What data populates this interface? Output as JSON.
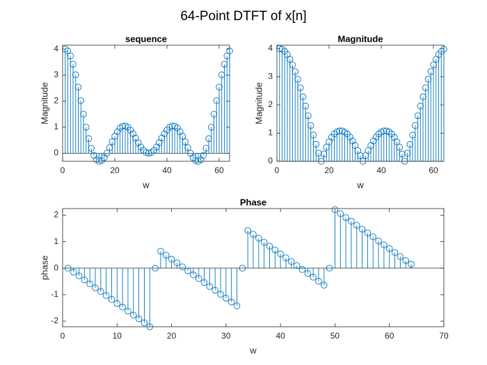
{
  "title": "64-Point DTFT of x[n]",
  "chart_data": [
    {
      "type": "stem",
      "title": "sequence",
      "xlabel": "w",
      "ylabel": "Magnitude",
      "color": "#0072BD",
      "x": [
        1,
        2,
        3,
        4,
        5,
        6,
        7,
        8,
        9,
        10,
        11,
        12,
        13,
        14,
        15,
        16,
        17,
        18,
        19,
        20,
        21,
        22,
        23,
        24,
        25,
        26,
        27,
        28,
        29,
        30,
        31,
        32,
        33,
        34,
        35,
        36,
        37,
        38,
        39,
        40,
        41,
        42,
        43,
        44,
        45,
        46,
        47,
        48,
        49,
        50,
        51,
        52,
        53,
        54,
        55,
        56,
        57,
        58,
        59,
        60,
        61,
        62,
        63,
        64
      ],
      "values": [
        4,
        3.93,
        3.74,
        3.42,
        3.01,
        2.54,
        2.02,
        1.5,
        1,
        0.56,
        0.19,
        -0.08,
        -0.25,
        -0.31,
        -0.28,
        -0.17,
        0,
        0.21,
        0.44,
        0.65,
        0.83,
        0.97,
        1.04,
        1.05,
        1,
        0.89,
        0.75,
        0.58,
        0.4,
        0.24,
        0.11,
        0.03,
        0,
        0.03,
        0.11,
        0.24,
        0.4,
        0.58,
        0.75,
        0.89,
        1,
        1.05,
        1.04,
        0.97,
        0.83,
        0.65,
        0.44,
        0.21,
        0,
        -0.17,
        -0.28,
        -0.31,
        -0.25,
        -0.08,
        0.19,
        0.56,
        1,
        1.5,
        2.02,
        2.54,
        3.01,
        3.42,
        3.74,
        3.93
      ],
      "xlim": [
        0,
        64
      ],
      "xticks": [
        0,
        20,
        40,
        60
      ],
      "ylim": [
        -0.31,
        4.15
      ],
      "yticks": [
        0,
        1,
        2,
        3,
        4
      ]
    },
    {
      "type": "stem",
      "title": "Magnitude",
      "xlabel": "w",
      "ylabel": "Magnitude",
      "color": "#0072BD",
      "x": [
        1,
        2,
        3,
        4,
        5,
        6,
        7,
        8,
        9,
        10,
        11,
        12,
        13,
        14,
        15,
        16,
        17,
        18,
        19,
        20,
        21,
        22,
        23,
        24,
        25,
        26,
        27,
        28,
        29,
        30,
        31,
        32,
        33,
        34,
        35,
        36,
        37,
        38,
        39,
        40,
        41,
        42,
        43,
        44,
        45,
        46,
        47,
        48,
        49,
        50,
        51,
        52,
        53,
        54,
        55,
        56,
        57,
        58,
        59,
        60,
        61,
        62,
        63,
        64
      ],
      "values": [
        4,
        3.98,
        3.9,
        3.79,
        3.62,
        3.42,
        3.18,
        2.91,
        2.61,
        2.29,
        1.96,
        1.62,
        1.27,
        0.93,
        0.6,
        0.29,
        0,
        0.26,
        0.5,
        0.69,
        0.85,
        0.97,
        1.05,
        1.08,
        1.08,
        1.04,
        0.97,
        0.86,
        0.72,
        0.56,
        0.38,
        0.2,
        0,
        0.2,
        0.38,
        0.56,
        0.72,
        0.86,
        0.97,
        1.04,
        1.08,
        1.08,
        1.05,
        0.97,
        0.85,
        0.69,
        0.5,
        0.26,
        0,
        0.29,
        0.6,
        0.93,
        1.27,
        1.62,
        1.96,
        2.29,
        2.61,
        2.91,
        3.18,
        3.42,
        3.62,
        3.79,
        3.9,
        3.98
      ],
      "xlim": [
        0,
        64
      ],
      "xticks": [
        0,
        20,
        40,
        60
      ],
      "ylim": [
        0,
        4.12
      ],
      "yticks": [
        0,
        1,
        2,
        3,
        4
      ]
    },
    {
      "type": "stem",
      "title": "Phase",
      "xlabel": "w",
      "ylabel": "phase",
      "color": "#0072BD",
      "x": [
        1,
        2,
        3,
        4,
        5,
        6,
        7,
        8,
        9,
        10,
        11,
        12,
        13,
        14,
        15,
        16,
        17,
        18,
        19,
        20,
        21,
        22,
        23,
        24,
        25,
        26,
        27,
        28,
        29,
        30,
        31,
        32,
        33,
        34,
        35,
        36,
        37,
        38,
        39,
        40,
        41,
        42,
        43,
        44,
        45,
        46,
        47,
        48,
        49,
        50,
        51,
        52,
        53,
        54,
        55,
        56,
        57,
        58,
        59,
        60,
        61,
        62,
        63,
        64
      ],
      "values": [
        0,
        -0.15,
        -0.29,
        -0.44,
        -0.59,
        -0.74,
        -0.88,
        -1.03,
        -1.18,
        -1.33,
        -1.47,
        -1.62,
        -1.77,
        -1.91,
        -2.06,
        -2.21,
        0,
        0.64,
        0.49,
        0.34,
        0.2,
        0.05,
        -0.1,
        -0.25,
        -0.39,
        -0.54,
        -0.69,
        -0.83,
        -0.98,
        -1.13,
        -1.28,
        -1.42,
        0,
        1.42,
        1.28,
        1.13,
        0.98,
        0.83,
        0.69,
        0.54,
        0.39,
        0.25,
        0.1,
        -0.05,
        -0.2,
        -0.34,
        -0.49,
        -0.64,
        0,
        2.21,
        2.06,
        1.91,
        1.77,
        1.62,
        1.47,
        1.33,
        1.18,
        1.03,
        0.88,
        0.74,
        0.59,
        0.44,
        0.29,
        0.15
      ],
      "xlim": [
        0,
        70
      ],
      "xticks": [
        0,
        10,
        20,
        30,
        40,
        50,
        60,
        70
      ],
      "ylim": [
        -2.21,
        2.25
      ],
      "yticks": [
        -2,
        -1,
        0,
        1,
        2
      ]
    }
  ]
}
